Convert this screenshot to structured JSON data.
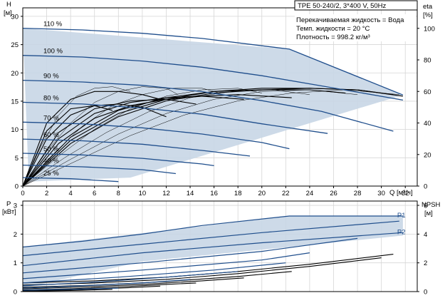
{
  "chart_data": [
    {
      "type": "line",
      "name": "head-and-efficiency",
      "title": "TPE 50-240/2, 3*400 V, 50Hz",
      "info_lines": [
        "Перекачиваемая жидкость = Вода",
        "Темп. жидкости = 20 °C",
        "Плотность = 998.2 кг/м³"
      ],
      "ylabel": [
        "H",
        "[м]"
      ],
      "y2label": [
        "eta",
        "[%]"
      ],
      "xlabel": "Q [м³/ч]",
      "xlim": [
        0,
        33
      ],
      "ylim": [
        0,
        31.5
      ],
      "y2lim": [
        0,
        113
      ],
      "xticks": [
        0,
        2,
        4,
        6,
        8,
        10,
        12,
        14,
        16,
        18,
        20,
        22,
        24,
        26,
        28,
        30,
        32
      ],
      "yticks": [
        0,
        5,
        10,
        15,
        20,
        25,
        30
      ],
      "y2ticks": [
        0,
        20,
        40,
        60,
        80,
        100
      ],
      "grid": true,
      "colors": {
        "curve": "#1f4e8c",
        "band": "#c8d6e5",
        "eta": "#000000"
      },
      "envelope": {
        "x": [
          0,
          22.3,
          31.8,
          9.0,
          0.5
        ],
        "y": [
          27.9,
          24.2,
          16.1,
          1.5,
          0.8
        ]
      },
      "speed_curves": [
        {
          "label": "110 %",
          "x": [
            0,
            5,
            10,
            15,
            20,
            22.3,
            31.8
          ],
          "y": [
            27.9,
            27.6,
            27.0,
            26.1,
            24.8,
            24.2,
            16.1
          ]
        },
        {
          "label": "100 %",
          "x": [
            0,
            5,
            10,
            15,
            20,
            25,
            31.8
          ],
          "y": [
            23.1,
            22.8,
            22.1,
            21.0,
            19.5,
            17.7,
            15.2
          ]
        },
        {
          "label": "90 %",
          "x": [
            0,
            5,
            10,
            15,
            20,
            25,
            31
          ],
          "y": [
            18.7,
            18.4,
            17.8,
            16.7,
            15.1,
            13.2,
            9.7
          ]
        },
        {
          "label": "80 %",
          "x": [
            0,
            5,
            10,
            15,
            20,
            25.5
          ],
          "y": [
            14.8,
            14.5,
            13.8,
            12.7,
            11.0,
            9.3
          ]
        },
        {
          "label": "70 %",
          "x": [
            0,
            5,
            10,
            15,
            20,
            22.3
          ],
          "y": [
            11.3,
            11.0,
            10.3,
            9.2,
            7.7,
            6.6
          ]
        },
        {
          "label": "60 %",
          "x": [
            0,
            5,
            10,
            15,
            19
          ],
          "y": [
            8.3,
            8.0,
            7.4,
            6.3,
            5.3
          ]
        },
        {
          "label": "50 %",
          "x": [
            0,
            5,
            10,
            15,
            16
          ],
          "y": [
            5.8,
            5.5,
            4.9,
            3.9,
            3.6
          ]
        },
        {
          "label": "40 %",
          "x": [
            0,
            5,
            10,
            12.8
          ],
          "y": [
            3.7,
            3.4,
            2.9,
            2.2
          ]
        },
        {
          "label": "25 %",
          "x": [
            0,
            4,
            8
          ],
          "y": [
            1.5,
            1.3,
            0.8
          ]
        }
      ],
      "eta_curves": [
        {
          "x": [
            0,
            4,
            8,
            12,
            16,
            20,
            24,
            28,
            31
          ],
          "y": [
            0,
            27,
            44,
            54,
            59,
            61,
            62,
            61,
            58
          ]
        },
        {
          "x": [
            0,
            4,
            8,
            12,
            16,
            20,
            24,
            28,
            31.8
          ],
          "y": [
            0,
            29,
            46,
            55,
            60,
            62,
            62,
            61,
            57
          ]
        },
        {
          "x": [
            0,
            4,
            8,
            12,
            16,
            20,
            24,
            27
          ],
          "y": [
            0,
            31,
            48,
            56,
            60,
            61,
            61,
            59
          ]
        },
        {
          "x": [
            0,
            3,
            6,
            9,
            12,
            15,
            18,
            22.5
          ],
          "y": [
            0,
            27,
            43,
            51,
            55,
            57,
            58,
            56
          ]
        },
        {
          "x": [
            0,
            3,
            6,
            9,
            12,
            15,
            18.5
          ],
          "y": [
            0,
            30,
            46,
            53,
            56,
            57,
            55
          ]
        },
        {
          "x": [
            0,
            3,
            6,
            9,
            12,
            14.5
          ],
          "y": [
            0,
            34,
            49,
            54,
            55,
            52
          ]
        },
        {
          "x": [
            0,
            2,
            4,
            6,
            8,
            10,
            12
          ],
          "y": [
            0,
            30,
            45,
            51,
            52,
            50,
            44
          ]
        },
        {
          "x": [
            0,
            2,
            4,
            6,
            7.5
          ],
          "y": [
            0,
            35,
            49,
            51,
            48
          ]
        },
        {
          "x": [
            0,
            2,
            4,
            6,
            8,
            10,
            11.5
          ],
          "y": [
            0,
            40,
            55,
            60,
            60,
            58,
            55
          ]
        }
      ],
      "thin_curves": [
        {
          "x": [
            0,
            1.5,
            3,
            4.5,
            6,
            7.5,
            9
          ],
          "y": [
            0,
            25,
            45,
            57,
            62,
            63,
            60
          ]
        },
        {
          "x": [
            0,
            2,
            4,
            6,
            8,
            10,
            12,
            13
          ],
          "y": [
            0,
            22,
            40,
            53,
            60,
            63,
            62,
            58
          ]
        },
        {
          "x": [
            0,
            2.5,
            5,
            7.5,
            10,
            12.5,
            15,
            16.5
          ],
          "y": [
            0,
            20,
            38,
            51,
            58,
            62,
            62,
            59
          ]
        },
        {
          "x": [
            0,
            3,
            6,
            9,
            12,
            15,
            18,
            20
          ],
          "y": [
            0,
            19,
            36,
            49,
            57,
            61,
            62,
            59
          ]
        },
        {
          "x": [
            0,
            3.5,
            7,
            10.5,
            14,
            17.5,
            21,
            24
          ],
          "y": [
            0,
            18,
            34,
            47,
            56,
            60,
            61,
            58
          ]
        },
        {
          "x": [
            0,
            4,
            8,
            12,
            16,
            20,
            24,
            28
          ],
          "y": [
            0,
            17,
            33,
            46,
            55,
            60,
            61,
            58
          ]
        },
        {
          "x": [
            0,
            4.5,
            9,
            13.5,
            18,
            22.5,
            27,
            31.5
          ],
          "y": [
            0,
            16,
            32,
            45,
            54,
            59,
            61,
            58
          ]
        }
      ]
    },
    {
      "type": "line",
      "name": "power-and-npsh",
      "ylabel": [
        "P",
        "[кВт]"
      ],
      "y2label": [
        "NPSH",
        "[м]"
      ],
      "xlim": [
        0,
        33
      ],
      "ylim": [
        0,
        3.15
      ],
      "y2lim": [
        0,
        6.3
      ],
      "yticks": [
        0,
        1,
        2,
        3
      ],
      "y2ticks": [
        0,
        2,
        4,
        6
      ],
      "grid": true,
      "colors": {
        "curve": "#1f4e8c",
        "band": "#c8d6e5",
        "npsh": "#000000"
      },
      "series_labels": [
        "P1",
        "P2"
      ],
      "envelope": {
        "x": [
          0,
          22.3,
          31.8,
          31.8,
          22.3,
          10,
          0
        ],
        "y": [
          1.55,
          2.63,
          2.63,
          1.95,
          1.55,
          1.05,
          0.12
        ]
      },
      "power_curves": [
        {
          "label": "P1",
          "x": [
            0,
            5,
            10,
            15,
            22.3,
            31.8
          ],
          "y": [
            1.55,
            1.75,
            2.0,
            2.3,
            2.63,
            2.63
          ]
        },
        {
          "label": "",
          "x": [
            0,
            10,
            20,
            31.5
          ],
          "y": [
            1.25,
            1.65,
            2.05,
            2.45
          ]
        },
        {
          "label": "P2",
          "x": [
            0,
            10,
            20,
            31.8
          ],
          "y": [
            0.9,
            1.35,
            1.7,
            2.05
          ]
        },
        {
          "label": "",
          "x": [
            0,
            10,
            20,
            28
          ],
          "y": [
            0.65,
            1.0,
            1.4,
            1.85
          ]
        },
        {
          "label": "",
          "x": [
            0,
            10,
            20,
            24
          ],
          "y": [
            0.45,
            0.75,
            1.1,
            1.35
          ]
        },
        {
          "label": "",
          "x": [
            0,
            8,
            16,
            22
          ],
          "y": [
            0.3,
            0.5,
            0.75,
            1.0
          ]
        },
        {
          "label": "",
          "x": [
            0,
            6,
            12,
            18
          ],
          "y": [
            0.2,
            0.33,
            0.5,
            0.7
          ]
        },
        {
          "label": "",
          "x": [
            0,
            5,
            10,
            14
          ],
          "y": [
            0.12,
            0.2,
            0.3,
            0.42
          ]
        },
        {
          "label": "",
          "x": [
            0,
            4,
            8
          ],
          "y": [
            0.05,
            0.08,
            0.12
          ]
        }
      ],
      "npsh_curves": [
        {
          "x": [
            0,
            6,
            12,
            18,
            24,
            31
          ],
          "y": [
            0.6,
            0.75,
            1.0,
            1.4,
            1.9,
            2.6
          ]
        },
        {
          "x": [
            0,
            6,
            12,
            18,
            24,
            30
          ],
          "y": [
            0.45,
            0.6,
            0.85,
            1.25,
            1.75,
            2.35
          ]
        },
        {
          "x": [
            0,
            6,
            12,
            18,
            22.5
          ],
          "y": [
            0.3,
            0.45,
            0.7,
            1.05,
            1.4
          ]
        },
        {
          "x": [
            0,
            5,
            10,
            15,
            18.5
          ],
          "y": [
            0.2,
            0.32,
            0.5,
            0.75,
            0.95
          ]
        },
        {
          "x": [
            0,
            4,
            8,
            12,
            14.5
          ],
          "y": [
            0.12,
            0.2,
            0.32,
            0.5,
            0.6
          ]
        },
        {
          "x": [
            0,
            3,
            6,
            9,
            11.5
          ],
          "y": [
            0.05,
            0.1,
            0.18,
            0.28,
            0.38
          ]
        },
        {
          "x": [
            0,
            2,
            4,
            6,
            7.5
          ],
          "y": [
            0.02,
            0.05,
            0.08,
            0.12,
            0.16
          ]
        }
      ]
    }
  ]
}
